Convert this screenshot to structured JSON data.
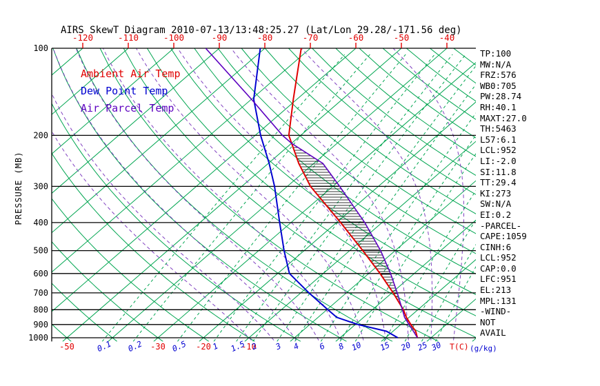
{
  "title": "AIRS SkewT Diagram 2010-07-13/13:48:25.27 (Lat/Lon 29.28/-171.56 deg)",
  "colors": {
    "background": "#ffffff",
    "axis": "#000000",
    "green_line": "#00a550",
    "moist_adiabat": "#8040c0",
    "mixing_label_blue": "#0000d0",
    "temp_label_red": "#e00000",
    "hatch": "#000000",
    "info_text": "#000000"
  },
  "axes": {
    "pressure_label": "PRESSURE (MB)",
    "pressure_ticks": [
      100,
      200,
      300,
      400,
      500,
      600,
      700,
      800,
      900,
      1000
    ],
    "top_temp_ticks": [
      -120,
      -110,
      -100,
      -90,
      -80,
      -70,
      -60,
      -50,
      -40
    ],
    "bottom_temp_ticks": [
      -50,
      -30,
      -20,
      -10
    ],
    "temp_unit_label": "T(C)",
    "mixing_unit_label": "(g/kg)",
    "mixing_ratio_labels": [
      0.1,
      0.2,
      0.5,
      1,
      1.5,
      2,
      3,
      4,
      6,
      8,
      10,
      15,
      20,
      25,
      30
    ]
  },
  "legend": [
    {
      "label": "Ambient Air Temp",
      "color": "#e00000"
    },
    {
      "label": "Dew Point Temp",
      "color": "#0000d0"
    },
    {
      "label": "Air Parcel Temp",
      "color": "#5c00c0"
    }
  ],
  "info_panel": [
    "TP:100",
    "MW:N/A",
    "FRZ:576",
    "WB0:705",
    "PW:28.74",
    "RH:40.1",
    "MAXT:27.0",
    "TH:5463",
    "L57:6.1",
    "LCL:952",
    "LI:-2.0",
    "SI:11.8",
    "TT:29.4",
    "KI:273",
    "SW:N/A",
    "EI:0.2",
    "-PARCEL-",
    "CAPE:1059",
    "CINH:6",
    "LCL:952",
    "CAP:0.0",
    "LFC:951",
    "EL:213",
    "MPL:131",
    "-WIND-",
    "NOT",
    "AVAIL"
  ],
  "chart_data": {
    "type": "line",
    "subtype": "skew-t-log-p",
    "title": "AIRS SkewT Diagram 2010-07-13/13:48:25.27 (Lat/Lon 29.28/-171.56 deg)",
    "xlabel": "T(C)",
    "ylabel": "PRESSURE (MB)",
    "pressure_range_mb": [
      100,
      1030
    ],
    "legend_position": "top-left",
    "series": [
      {
        "id": "ambient",
        "name": "Ambient Air Temp",
        "color": "#e00000",
        "width": 2,
        "pressure_mb": [
          1000,
          950,
          900,
          850,
          800,
          700,
          600,
          500,
          400,
          300,
          250,
          200,
          150,
          100
        ],
        "temp_c": [
          27,
          25,
          22.2,
          19.4,
          16.8,
          10.3,
          2.5,
          -7.1,
          -19.1,
          -34.9,
          -43.3,
          -52.6,
          -60.8,
          -72
        ]
      },
      {
        "id": "dewpoint",
        "name": "Dew Point Temp",
        "color": "#0000d0",
        "width": 2,
        "pressure_mb": [
          1000,
          950,
          900,
          850,
          800,
          700,
          600,
          500,
          400,
          300,
          250,
          200,
          150,
          100
        ],
        "temp_c": [
          22.7,
          18.6,
          10.6,
          4.1,
          0.2,
          -8.2,
          -17.4,
          -24.4,
          -32.5,
          -42.8,
          -49.8,
          -58.8,
          -69.5,
          -81
        ]
      },
      {
        "id": "parcel",
        "name": "Air Parcel Temp",
        "color": "#5c00c0",
        "width": 1.6,
        "pressure_mb": [
          1000,
          952,
          900,
          850,
          800,
          700,
          600,
          500,
          400,
          300,
          250,
          213,
          200,
          150,
          100
        ],
        "temp_c": [
          27,
          24.6,
          21.8,
          19.0,
          16.6,
          11.2,
          4.8,
          -3.2,
          -13.8,
          -28.5,
          -38,
          -50,
          -54,
          -70,
          -93
        ]
      }
    ],
    "hatched_cape_region_mb": [
      960,
      213
    ],
    "background": {
      "isotherms_c": {
        "min": -120,
        "max": 40,
        "step": 10
      },
      "dry_adiabats_c": {
        "min": -60,
        "max": 180,
        "step": 10
      },
      "moist_adiabats_start_c": [
        -10,
        -5,
        0,
        5,
        10,
        15,
        20,
        25,
        30,
        35,
        40
      ],
      "mixing_ratio_g_kg": [
        0.1,
        0.2,
        0.5,
        1,
        1.5,
        2,
        3,
        4,
        6,
        8,
        10,
        15,
        20,
        25,
        30
      ]
    }
  }
}
